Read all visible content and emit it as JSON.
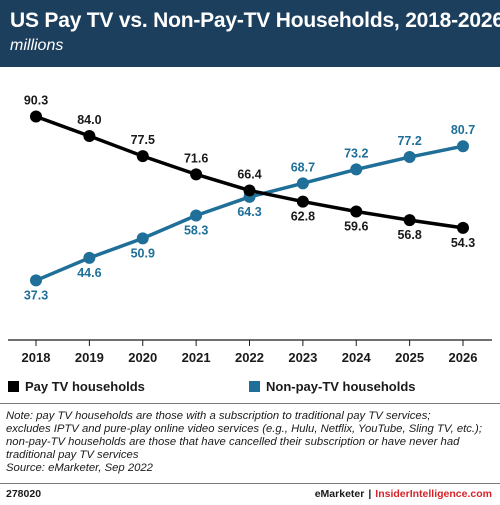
{
  "header": {
    "title": "US Pay TV vs. Non-Pay-TV Households, 2018-2026",
    "subtitle": "millions"
  },
  "colors": {
    "header_bg": "#1d3f5e",
    "series_pay_tv": "#000000",
    "series_non_pay_tv": "#1f6f99",
    "brand_red": "#d6232a"
  },
  "chart_data": {
    "type": "line",
    "title": "US Pay TV vs. Non-Pay-TV Households, 2018-2026",
    "subtitle": "millions",
    "x": [
      "2018",
      "2019",
      "2020",
      "2021",
      "2022",
      "2023",
      "2024",
      "2025",
      "2026"
    ],
    "series": [
      {
        "name": "Pay TV households",
        "color": "#000000",
        "values": [
          90.3,
          84.0,
          77.5,
          71.6,
          66.4,
          62.8,
          59.6,
          56.8,
          54.3
        ],
        "labels": [
          "90.3",
          "84.0",
          "77.5",
          "71.6",
          "66.4",
          "62.8",
          "59.6",
          "56.8",
          "54.3"
        ]
      },
      {
        "name": "Non-pay-TV households",
        "color": "#1f6f99",
        "values": [
          37.3,
          44.6,
          50.9,
          58.3,
          64.3,
          68.7,
          73.2,
          77.2,
          80.7
        ],
        "labels": [
          "37.3",
          "44.6",
          "50.9",
          "58.3",
          "64.3",
          "68.7",
          "73.2",
          "77.2",
          "80.7"
        ]
      }
    ],
    "ylim": [
      30,
      95
    ],
    "grid": false,
    "legend": "bottom"
  },
  "legend": {
    "items": [
      {
        "label": "Pay TV households",
        "color": "#000000"
      },
      {
        "label": "Non-pay-TV households",
        "color": "#1f6f99"
      }
    ]
  },
  "notes": {
    "line1": "Note: pay TV households are those with a subscription to traditional pay TV services;",
    "line2": "excludes IPTV and pure-play online video services (e.g., Hulu, Netflix, YouTube, Sling TV, etc.);",
    "line3": "non-pay-TV households are those that have cancelled their subscription or have never had",
    "line4": "traditional pay TV services",
    "source": "Source: eMarketer, Sep 2022"
  },
  "footer": {
    "id": "278020",
    "brand1": "eMarketer",
    "separator": "|",
    "brand2": "InsiderIntelligence.com"
  }
}
